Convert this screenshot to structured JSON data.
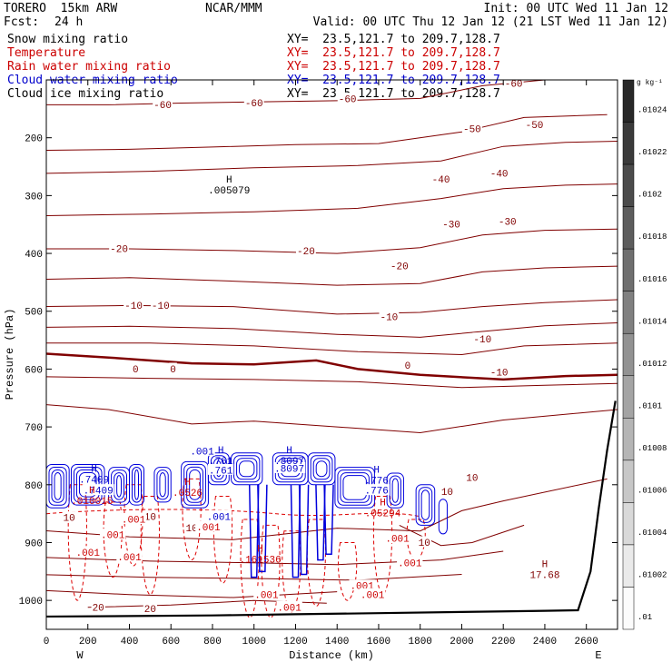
{
  "header": {
    "model": "TORERO  15km ARW",
    "source": "NCAR/MMM",
    "init": "Init: 00 UTC Wed 11 Jan 12",
    "fcst_label": "Fcst:",
    "fcst_value": "24 h",
    "valid": "Valid: 00 UTC Thu 12 Jan 12 (21 LST Wed 11 Jan 12)"
  },
  "fields": [
    {
      "name": "Snow mixing ratio",
      "xy": "",
      "color": "#000000"
    },
    {
      "name": "Temperature",
      "xy": "XY=  23.5,121.7 to 209.7,128.7",
      "color": "#cc0000"
    },
    {
      "name": "Rain water mixing ratio",
      "xy": "XY=  23.5,121.7 to 209.7,128.7",
      "color": "#cc0000"
    },
    {
      "name": "Cloud water mixing ratio",
      "xy": "XY=  23.5,121.7 to 209.7,128.7",
      "color": "#0000cc"
    },
    {
      "name": "Cloud ice mixing ratio",
      "xy": "XY=  23.5,121.7 to 209.7,128.7",
      "color": "#000000"
    }
  ],
  "snow_xy": "XY=  23.5,121.7 to 209.7,128.7",
  "colorbar": {
    "unit": "g kg⁻¹",
    "ticks": [
      ".01024",
      ".01022",
      ".0102",
      ".01018",
      ".01016",
      ".01014",
      ".01012",
      ".0101",
      ".01008",
      ".01006",
      ".01004",
      ".01002",
      ".01"
    ]
  },
  "chart_data": {
    "type": "contour",
    "xlabel": "Distance (km)",
    "ylabel": "Pressure (hPa)",
    "xlim": [
      0,
      2750
    ],
    "ylim": [
      1050,
      100
    ],
    "x_ticks": [
      0,
      200,
      400,
      600,
      800,
      1000,
      1200,
      1400,
      1600,
      1800,
      2000,
      2200,
      2400,
      2600
    ],
    "y_ticks": [
      200,
      300,
      400,
      500,
      600,
      700,
      800,
      900,
      1000
    ],
    "direction_left": "W",
    "direction_right": "E",
    "temperature_contours": [
      {
        "label": "-60",
        "points": [
          [
            -60,
            143
          ],
          [
            300,
            143
          ],
          [
            650,
            140
          ],
          [
            1000,
            138
          ],
          [
            1400,
            136
          ],
          [
            1800,
            132
          ],
          [
            2100,
            110
          ],
          [
            2400,
            100
          ],
          [
            2700,
            98
          ]
        ]
      },
      {
        "label": "-50",
        "points": [
          [
            -60,
            222
          ],
          [
            400,
            220
          ],
          [
            800,
            216
          ],
          [
            1200,
            212
          ],
          [
            1600,
            210
          ],
          [
            2000,
            190
          ],
          [
            2300,
            165
          ],
          [
            2700,
            160
          ]
        ]
      },
      {
        "label": "-40",
        "points": [
          [
            -60,
            262
          ],
          [
            500,
            258
          ],
          [
            1000,
            252
          ],
          [
            1500,
            248
          ],
          [
            1900,
            240
          ],
          [
            2200,
            215
          ],
          [
            2500,
            208
          ],
          [
            2750,
            206
          ]
        ]
      },
      {
        "label": "-30",
        "points": [
          [
            -60,
            335
          ],
          [
            500,
            332
          ],
          [
            1000,
            328
          ],
          [
            1500,
            322
          ],
          [
            1900,
            305
          ],
          [
            2200,
            288
          ],
          [
            2500,
            282
          ],
          [
            2750,
            280
          ]
        ]
      },
      {
        "label": "-20",
        "points": [
          [
            -60,
            392
          ],
          [
            400,
            392
          ],
          [
            900,
            395
          ],
          [
            1400,
            400
          ],
          [
            1800,
            390
          ],
          [
            2100,
            368
          ],
          [
            2400,
            360
          ],
          [
            2750,
            358
          ]
        ]
      },
      {
        "label": "-20",
        "points": [
          [
            -60,
            445
          ],
          [
            400,
            442
          ],
          [
            900,
            448
          ],
          [
            1400,
            455
          ],
          [
            1800,
            452
          ],
          [
            2100,
            432
          ],
          [
            2400,
            425
          ],
          [
            2750,
            422
          ]
        ]
      },
      {
        "label": "-10",
        "points": [
          [
            -60,
            492
          ],
          [
            400,
            490
          ],
          [
            900,
            492
          ],
          [
            1400,
            505
          ],
          [
            1800,
            502
          ],
          [
            2100,
            492
          ],
          [
            2400,
            485
          ],
          [
            2750,
            480
          ]
        ]
      },
      {
        "label": "-10",
        "points": [
          [
            -60,
            528
          ],
          [
            400,
            526
          ],
          [
            900,
            530
          ],
          [
            1400,
            540
          ],
          [
            1800,
            545
          ],
          [
            2100,
            535
          ],
          [
            2400,
            525
          ],
          [
            2750,
            520
          ]
        ]
      },
      {
        "label": "-10",
        "points": [
          [
            -60,
            555
          ],
          [
            500,
            555
          ],
          [
            1000,
            560
          ],
          [
            1500,
            570
          ],
          [
            2000,
            575
          ],
          [
            2300,
            560
          ],
          [
            2750,
            555
          ]
        ]
      },
      {
        "label": "0",
        "points": [
          [
            -60,
            572
          ],
          [
            300,
            580
          ],
          [
            700,
            590
          ],
          [
            1000,
            592
          ],
          [
            1300,
            585
          ],
          [
            1500,
            600
          ],
          [
            1800,
            610
          ],
          [
            2200,
            618
          ],
          [
            2500,
            612
          ],
          [
            2750,
            610
          ]
        ]
      },
      {
        "label": "",
        "points": [
          [
            -60,
            613
          ],
          [
            500,
            616
          ],
          [
            1000,
            618
          ],
          [
            1500,
            622
          ],
          [
            2000,
            632
          ],
          [
            2400,
            628
          ],
          [
            2750,
            625
          ]
        ]
      },
      {
        "label": "",
        "points": [
          [
            -60,
            660
          ],
          [
            300,
            670
          ],
          [
            700,
            695
          ],
          [
            1000,
            690
          ],
          [
            1400,
            700
          ],
          [
            1800,
            710
          ],
          [
            2200,
            688
          ],
          [
            2750,
            670
          ]
        ]
      },
      {
        "label": "10",
        "points": [
          [
            -60,
            878
          ],
          [
            400,
            890
          ],
          [
            900,
            895
          ],
          [
            1400,
            875
          ],
          [
            1800,
            880
          ],
          [
            2000,
            845
          ],
          [
            2200,
            828
          ],
          [
            2700,
            790
          ]
        ]
      },
      {
        "label": "10",
        "points": [
          [
            1700,
            870
          ],
          [
            1900,
            905
          ],
          [
            2050,
            900
          ],
          [
            2300,
            870
          ]
        ]
      },
      {
        "label": "",
        "points": [
          [
            -60,
            925
          ],
          [
            500,
            932
          ],
          [
            1000,
            935
          ],
          [
            1400,
            938
          ],
          [
            1900,
            930
          ],
          [
            2200,
            915
          ]
        ]
      },
      {
        "label": "",
        "points": [
          [
            -60,
            955
          ],
          [
            500,
            960
          ],
          [
            1000,
            962
          ],
          [
            1500,
            965
          ],
          [
            2000,
            955
          ]
        ]
      },
      {
        "label": "20",
        "points": [
          [
            -60,
            982
          ],
          [
            400,
            990
          ],
          [
            900,
            995
          ],
          [
            1400,
            985
          ]
        ]
      },
      {
        "label": "20",
        "points": [
          [
            200,
            1012
          ],
          [
            600,
            1008
          ],
          [
            1000,
            1000
          ],
          [
            1350,
            1005
          ]
        ]
      }
    ],
    "temperature_labels": [
      {
        "text": "-60",
        "x": 560,
        "p": 143
      },
      {
        "text": "-60",
        "x": 1000,
        "p": 140
      },
      {
        "text": "-60",
        "x": 1450,
        "p": 133
      },
      {
        "text": "-60",
        "x": 2250,
        "p": 106
      },
      {
        "text": "-50",
        "x": 2050,
        "p": 185
      },
      {
        "text": "-50",
        "x": 2350,
        "p": 178
      },
      {
        "text": "-40",
        "x": 1900,
        "p": 272
      },
      {
        "text": "-40",
        "x": 2180,
        "p": 262
      },
      {
        "text": "-30",
        "x": 1950,
        "p": 350
      },
      {
        "text": "-30",
        "x": 2220,
        "p": 345
      },
      {
        "text": "-20",
        "x": 350,
        "p": 392
      },
      {
        "text": "-20",
        "x": 1250,
        "p": 396
      },
      {
        "text": "-20",
        "x": 1700,
        "p": 422
      },
      {
        "text": "-10",
        "x": 420,
        "p": 490
      },
      {
        "text": "-10",
        "x": 550,
        "p": 490
      },
      {
        "text": "-10",
        "x": 1650,
        "p": 510
      },
      {
        "text": "-10",
        "x": 2100,
        "p": 548
      },
      {
        "text": "-10",
        "x": 2180,
        "p": 606
      },
      {
        "text": "0",
        "x": 430,
        "p": 600
      },
      {
        "text": "0",
        "x": 610,
        "p": 600
      },
      {
        "text": "0",
        "x": 1740,
        "p": 594
      },
      {
        "text": "10",
        "x": 1930,
        "p": 812
      },
      {
        "text": "10",
        "x": 2050,
        "p": 788
      },
      {
        "text": "10",
        "x": 110,
        "p": 857
      },
      {
        "text": "10",
        "x": 500,
        "p": 855
      },
      {
        "text": "10",
        "x": 700,
        "p": 875
      },
      {
        "text": "10",
        "x": 1820,
        "p": 900
      },
      {
        "text": "20",
        "x": 250,
        "p": 1012
      },
      {
        "text": "20",
        "x": 500,
        "p": 1015
      }
    ],
    "rain_water_labels": [
      {
        "text": ".001",
        "x": 200,
        "p": 917
      },
      {
        "text": ".001",
        "x": 320,
        "p": 887
      },
      {
        "text": ".001",
        "x": 400,
        "p": 925
      },
      {
        "text": ".001",
        "x": 420,
        "p": 860
      },
      {
        "text": ".001",
        "x": 780,
        "p": 873
      },
      {
        "text": ".001",
        "x": 1520,
        "p": 975
      },
      {
        "text": ".001",
        "x": 1570,
        "p": 990
      },
      {
        "text": ".001",
        "x": 1690,
        "p": 893
      },
      {
        "text": ".001",
        "x": 1750,
        "p": 935
      },
      {
        "text": ".001",
        "x": 1060,
        "p": 990
      },
      {
        "text": ".001",
        "x": 1170,
        "p": 1012
      }
    ],
    "cloud_water_labels": [
      {
        "text": ".001",
        "x": 750,
        "p": 742
      },
      {
        "text": ".001",
        "x": 830,
        "p": 855
      },
      {
        "text": ".7409",
        "x": 250,
        "p": 810
      },
      {
        "text": ".761",
        "x": 840,
        "p": 775
      },
      {
        "text": ".8097",
        "x": 1170,
        "p": 772
      },
      {
        "text": ".776",
        "x": 1590,
        "p": 810
      }
    ],
    "maxima": [
      {
        "symbol": "H",
        "value": ".005079",
        "x": 880,
        "p": 290,
        "color": "#000000"
      },
      {
        "symbol": "H",
        "value": ".7409",
        "x": 230,
        "p": 790,
        "color": "#0000cc"
      },
      {
        "symbol": "H",
        "value": ".761",
        "x": 840,
        "p": 758,
        "color": "#0000cc"
      },
      {
        "symbol": "H",
        "value": ".8097",
        "x": 1170,
        "p": 758,
        "color": "#0000cc"
      },
      {
        "symbol": "H",
        "value": ".776",
        "x": 1590,
        "p": 792,
        "color": "#0000cc"
      },
      {
        "symbol": "H",
        "value": ".010015",
        "x": 220,
        "p": 827,
        "color": "#cc0000"
      },
      {
        "symbol": "H",
        "value": ".0526",
        "x": 680,
        "p": 813,
        "color": "#cc0000"
      },
      {
        "symbol": "H",
        "value": ".05294",
        "x": 1620,
        "p": 848,
        "color": "#cc0000"
      },
      {
        "symbol": "H",
        "value": ".161536",
        "x": 1030,
        "p": 928,
        "color": "#cc0000"
      },
      {
        "symbol": "H",
        "value": "17.68",
        "x": 2400,
        "p": 955,
        "color": "#800000"
      }
    ],
    "terrain_points": [
      [
        -60,
        1028
      ],
      [
        400,
        1027
      ],
      [
        800,
        1026
      ],
      [
        1200,
        1024
      ],
      [
        1600,
        1022
      ],
      [
        2000,
        1020
      ],
      [
        2400,
        1018
      ],
      [
        2560,
        1017
      ],
      [
        2620,
        950
      ],
      [
        2660,
        840
      ],
      [
        2700,
        740
      ],
      [
        2740,
        655
      ]
    ]
  }
}
